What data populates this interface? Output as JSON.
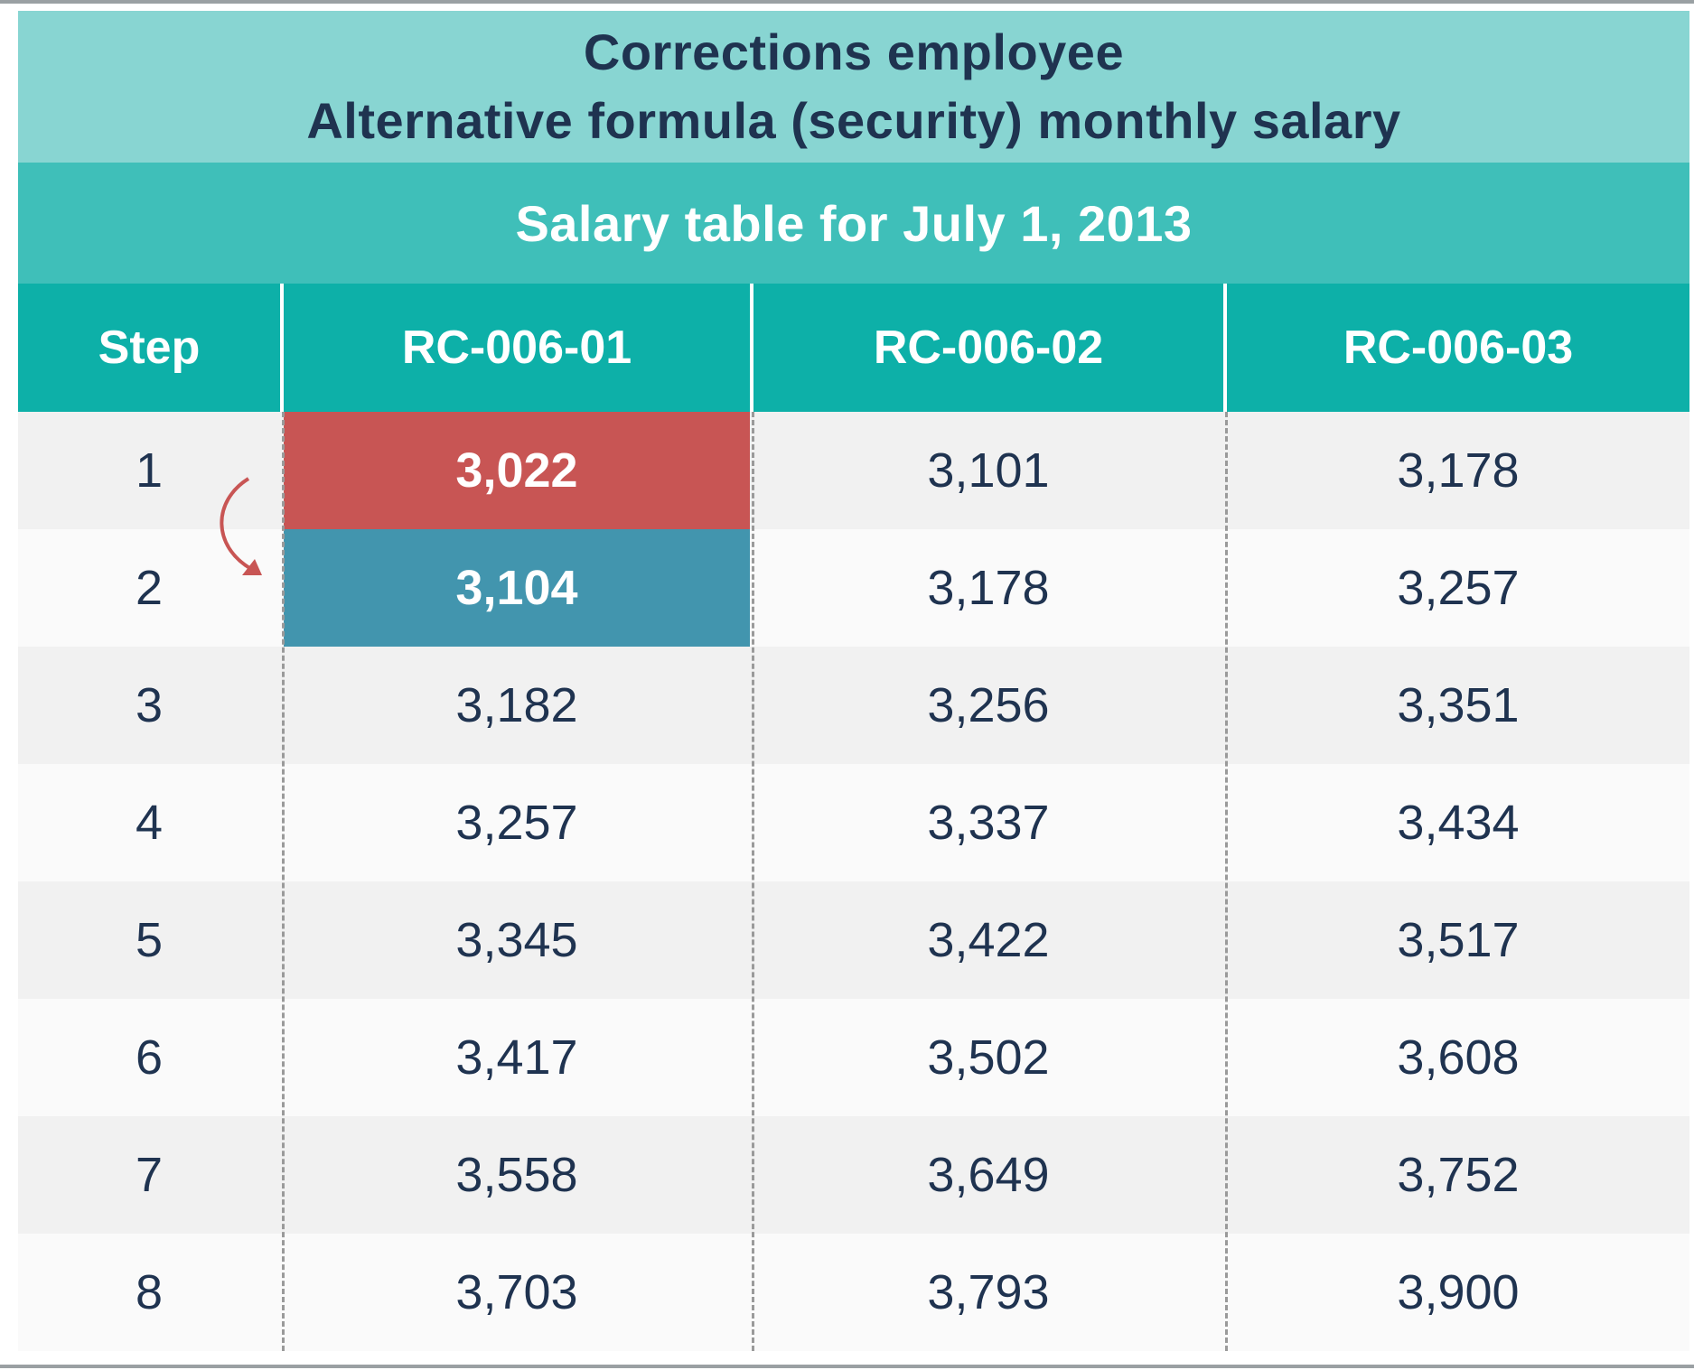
{
  "title": {
    "line1": "Corrections employee",
    "line2": "Alternative formula (security) monthly salary"
  },
  "subtitle": "Salary table for July 1, 2013",
  "columns": [
    "Step",
    "RC-006-01",
    "RC-006-02",
    "RC-006-03"
  ],
  "rows": [
    [
      "1",
      "3,022",
      "3,101",
      "3,178"
    ],
    [
      "2",
      "3,104",
      "3,178",
      "3,257"
    ],
    [
      "3",
      "3,182",
      "3,256",
      "3,351"
    ],
    [
      "4",
      "3,257",
      "3,337",
      "3,434"
    ],
    [
      "5",
      "3,345",
      "3,422",
      "3,517"
    ],
    [
      "6",
      "3,417",
      "3,502",
      "3,608"
    ],
    [
      "7",
      "3,558",
      "3,649",
      "3,752"
    ],
    [
      "8",
      "3,703",
      "3,793",
      "3,900"
    ]
  ],
  "highlights": {
    "from_cell_color": "#c85554",
    "to_cell_color": "#4295ae",
    "arrow": "curved-arrow-icon"
  },
  "colors": {
    "title_band": "#88d5d2",
    "subtitle_band": "#3fbfb9",
    "header_row": "#0db0a8",
    "text": "#1f3350"
  }
}
